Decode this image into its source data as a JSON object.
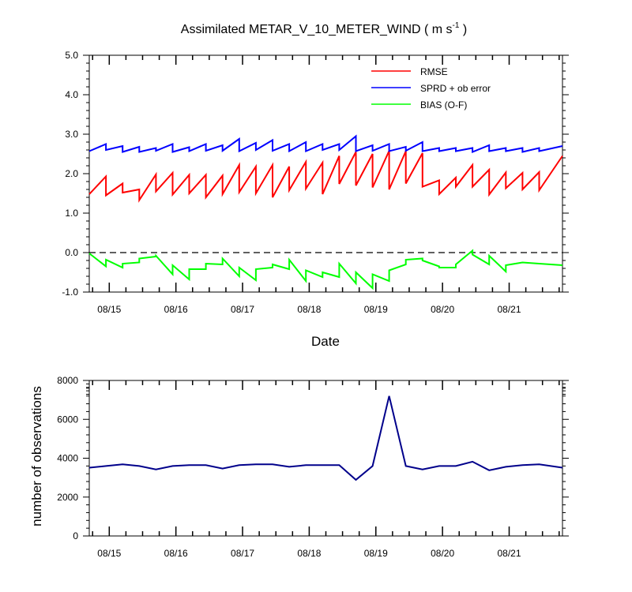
{
  "chart_data": [
    {
      "type": "line",
      "title": "Assimilated METAR_V_10_METER_WIND ( m s",
      "title_superscript": "-1",
      "title_close": " )",
      "xlabel": "Date",
      "ylabel": "",
      "ylim": [
        -1.0,
        5.0
      ],
      "yticks": [
        "-1.0",
        "0.0",
        "1.0",
        "2.0",
        "3.0",
        "4.0",
        "5.0"
      ],
      "xticks": [
        "08/15",
        "08/16",
        "08/17",
        "08/18",
        "08/19",
        "08/20",
        "08/21"
      ],
      "xlim": [
        14.7,
        21.8
      ],
      "zero_line": "dashed",
      "legend_position": "top-right",
      "series": [
        {
          "name": "RMSE",
          "color": "#ff0000",
          "points": [
            [
              14.7,
              1.48
            ],
            [
              14.95,
              1.93
            ],
            [
              14.95,
              1.45
            ],
            [
              15.2,
              1.75
            ],
            [
              15.2,
              1.52
            ],
            [
              15.45,
              1.6
            ],
            [
              15.45,
              1.33
            ],
            [
              15.7,
              1.98
            ],
            [
              15.7,
              1.55
            ],
            [
              15.95,
              2.02
            ],
            [
              15.95,
              1.47
            ],
            [
              16.2,
              1.97
            ],
            [
              16.2,
              1.5
            ],
            [
              16.45,
              1.97
            ],
            [
              16.45,
              1.4
            ],
            [
              16.7,
              1.95
            ],
            [
              16.7,
              1.48
            ],
            [
              16.95,
              2.22
            ],
            [
              16.95,
              1.53
            ],
            [
              17.2,
              2.18
            ],
            [
              17.2,
              1.5
            ],
            [
              17.45,
              2.22
            ],
            [
              17.45,
              1.4
            ],
            [
              17.7,
              2.18
            ],
            [
              17.7,
              1.58
            ],
            [
              17.95,
              2.3
            ],
            [
              17.95,
              1.62
            ],
            [
              18.2,
              2.28
            ],
            [
              18.2,
              1.48
            ],
            [
              18.45,
              2.45
            ],
            [
              18.45,
              1.74
            ],
            [
              18.7,
              2.55
            ],
            [
              18.7,
              1.7
            ],
            [
              18.95,
              2.5
            ],
            [
              18.95,
              1.65
            ],
            [
              19.2,
              2.58
            ],
            [
              19.2,
              1.6
            ],
            [
              19.45,
              2.57
            ],
            [
              19.45,
              1.75
            ],
            [
              19.7,
              2.52
            ],
            [
              19.7,
              1.67
            ],
            [
              19.95,
              1.83
            ],
            [
              19.95,
              1.48
            ],
            [
              20.2,
              1.9
            ],
            [
              20.2,
              1.67
            ],
            [
              20.45,
              2.22
            ],
            [
              20.45,
              1.67
            ],
            [
              20.7,
              2.1
            ],
            [
              20.7,
              1.47
            ],
            [
              20.95,
              2.03
            ],
            [
              20.95,
              1.63
            ],
            [
              21.2,
              2.02
            ],
            [
              21.2,
              1.6
            ],
            [
              21.45,
              2.04
            ],
            [
              21.45,
              1.58
            ],
            [
              21.8,
              2.45
            ]
          ]
        },
        {
          "name": "SPRD + ob error",
          "color": "#0000ff",
          "points": [
            [
              14.7,
              2.57
            ],
            [
              14.95,
              2.75
            ],
            [
              14.95,
              2.6
            ],
            [
              15.2,
              2.7
            ],
            [
              15.2,
              2.55
            ],
            [
              15.45,
              2.68
            ],
            [
              15.45,
              2.55
            ],
            [
              15.7,
              2.65
            ],
            [
              15.7,
              2.58
            ],
            [
              15.95,
              2.75
            ],
            [
              15.95,
              2.55
            ],
            [
              16.2,
              2.67
            ],
            [
              16.2,
              2.57
            ],
            [
              16.45,
              2.75
            ],
            [
              16.45,
              2.58
            ],
            [
              16.7,
              2.72
            ],
            [
              16.7,
              2.58
            ],
            [
              16.95,
              2.88
            ],
            [
              16.95,
              2.57
            ],
            [
              17.2,
              2.78
            ],
            [
              17.2,
              2.6
            ],
            [
              17.45,
              2.85
            ],
            [
              17.45,
              2.58
            ],
            [
              17.7,
              2.75
            ],
            [
              17.7,
              2.57
            ],
            [
              17.95,
              2.8
            ],
            [
              17.95,
              2.57
            ],
            [
              18.2,
              2.75
            ],
            [
              18.2,
              2.6
            ],
            [
              18.45,
              2.75
            ],
            [
              18.45,
              2.6
            ],
            [
              18.7,
              2.95
            ],
            [
              18.7,
              2.57
            ],
            [
              18.95,
              2.72
            ],
            [
              18.95,
              2.58
            ],
            [
              19.2,
              2.75
            ],
            [
              19.2,
              2.57
            ],
            [
              19.45,
              2.68
            ],
            [
              19.45,
              2.58
            ],
            [
              19.7,
              2.8
            ],
            [
              19.7,
              2.57
            ],
            [
              19.95,
              2.65
            ],
            [
              19.95,
              2.57
            ],
            [
              20.2,
              2.65
            ],
            [
              20.2,
              2.57
            ],
            [
              20.45,
              2.65
            ],
            [
              20.45,
              2.55
            ],
            [
              20.7,
              2.72
            ],
            [
              20.7,
              2.57
            ],
            [
              20.95,
              2.65
            ],
            [
              20.95,
              2.57
            ],
            [
              21.2,
              2.65
            ],
            [
              21.2,
              2.55
            ],
            [
              21.45,
              2.65
            ],
            [
              21.45,
              2.57
            ],
            [
              21.8,
              2.7
            ]
          ]
        },
        {
          "name": "BIAS (O-F)",
          "color": "#00ff00",
          "points": [
            [
              14.7,
              -0.02
            ],
            [
              14.95,
              -0.35
            ],
            [
              14.95,
              -0.18
            ],
            [
              15.2,
              -0.38
            ],
            [
              15.2,
              -0.28
            ],
            [
              15.45,
              -0.25
            ],
            [
              15.45,
              -0.15
            ],
            [
              15.7,
              -0.1
            ],
            [
              15.7,
              -0.08
            ],
            [
              15.95,
              -0.55
            ],
            [
              15.95,
              -0.32
            ],
            [
              16.2,
              -0.68
            ],
            [
              16.2,
              -0.42
            ],
            [
              16.45,
              -0.42
            ],
            [
              16.45,
              -0.28
            ],
            [
              16.7,
              -0.3
            ],
            [
              16.7,
              -0.15
            ],
            [
              16.95,
              -0.6
            ],
            [
              16.95,
              -0.38
            ],
            [
              17.2,
              -0.7
            ],
            [
              17.2,
              -0.42
            ],
            [
              17.45,
              -0.38
            ],
            [
              17.45,
              -0.3
            ],
            [
              17.7,
              -0.42
            ],
            [
              17.7,
              -0.18
            ],
            [
              17.95,
              -0.72
            ],
            [
              17.95,
              -0.45
            ],
            [
              18.2,
              -0.62
            ],
            [
              18.2,
              -0.5
            ],
            [
              18.45,
              -0.62
            ],
            [
              18.45,
              -0.28
            ],
            [
              18.7,
              -0.78
            ],
            [
              18.7,
              -0.5
            ],
            [
              18.95,
              -0.9
            ],
            [
              18.95,
              -0.55
            ],
            [
              19.2,
              -0.72
            ],
            [
              19.2,
              -0.45
            ],
            [
              19.45,
              -0.3
            ],
            [
              19.45,
              -0.18
            ],
            [
              19.7,
              -0.15
            ],
            [
              19.7,
              -0.2
            ],
            [
              19.95,
              -0.35
            ],
            [
              19.95,
              -0.38
            ],
            [
              20.2,
              -0.38
            ],
            [
              20.2,
              -0.3
            ],
            [
              20.45,
              0.05
            ],
            [
              20.45,
              -0.05
            ],
            [
              20.7,
              -0.3
            ],
            [
              20.7,
              -0.08
            ],
            [
              20.95,
              -0.48
            ],
            [
              20.95,
              -0.32
            ],
            [
              21.2,
              -0.25
            ],
            [
              21.45,
              -0.28
            ],
            [
              21.8,
              -0.32
            ]
          ]
        }
      ]
    },
    {
      "type": "line",
      "title": "",
      "xlabel": "",
      "ylabel": "number of observations",
      "ylim": [
        0,
        9000
      ],
      "yticks": [
        "0",
        "2000",
        "4000",
        "6000",
        "8000"
      ],
      "xticks": [
        "08/15",
        "08/16",
        "08/17",
        "08/18",
        "08/19",
        "08/20",
        "08/21"
      ],
      "xlim": [
        14.7,
        21.8
      ],
      "series": [
        {
          "color": "#00008b",
          "x": [
            14.7,
            14.95,
            15.2,
            15.45,
            15.7,
            15.95,
            16.2,
            16.45,
            16.7,
            16.95,
            17.2,
            17.45,
            17.7,
            17.95,
            18.2,
            18.45,
            18.7,
            18.95,
            19.2,
            19.45,
            19.7,
            19.95,
            20.2,
            20.45,
            20.7,
            20.95,
            21.2,
            21.45,
            21.8
          ],
          "y": [
            3950,
            4050,
            4150,
            4050,
            3850,
            4050,
            4100,
            4100,
            3900,
            4100,
            4150,
            4150,
            4000,
            4100,
            4100,
            4100,
            3250,
            4050,
            8100,
            4050,
            3850,
            4050,
            4050,
            4300,
            3800,
            4000,
            4100,
            4150,
            3950
          ]
        }
      ]
    }
  ]
}
